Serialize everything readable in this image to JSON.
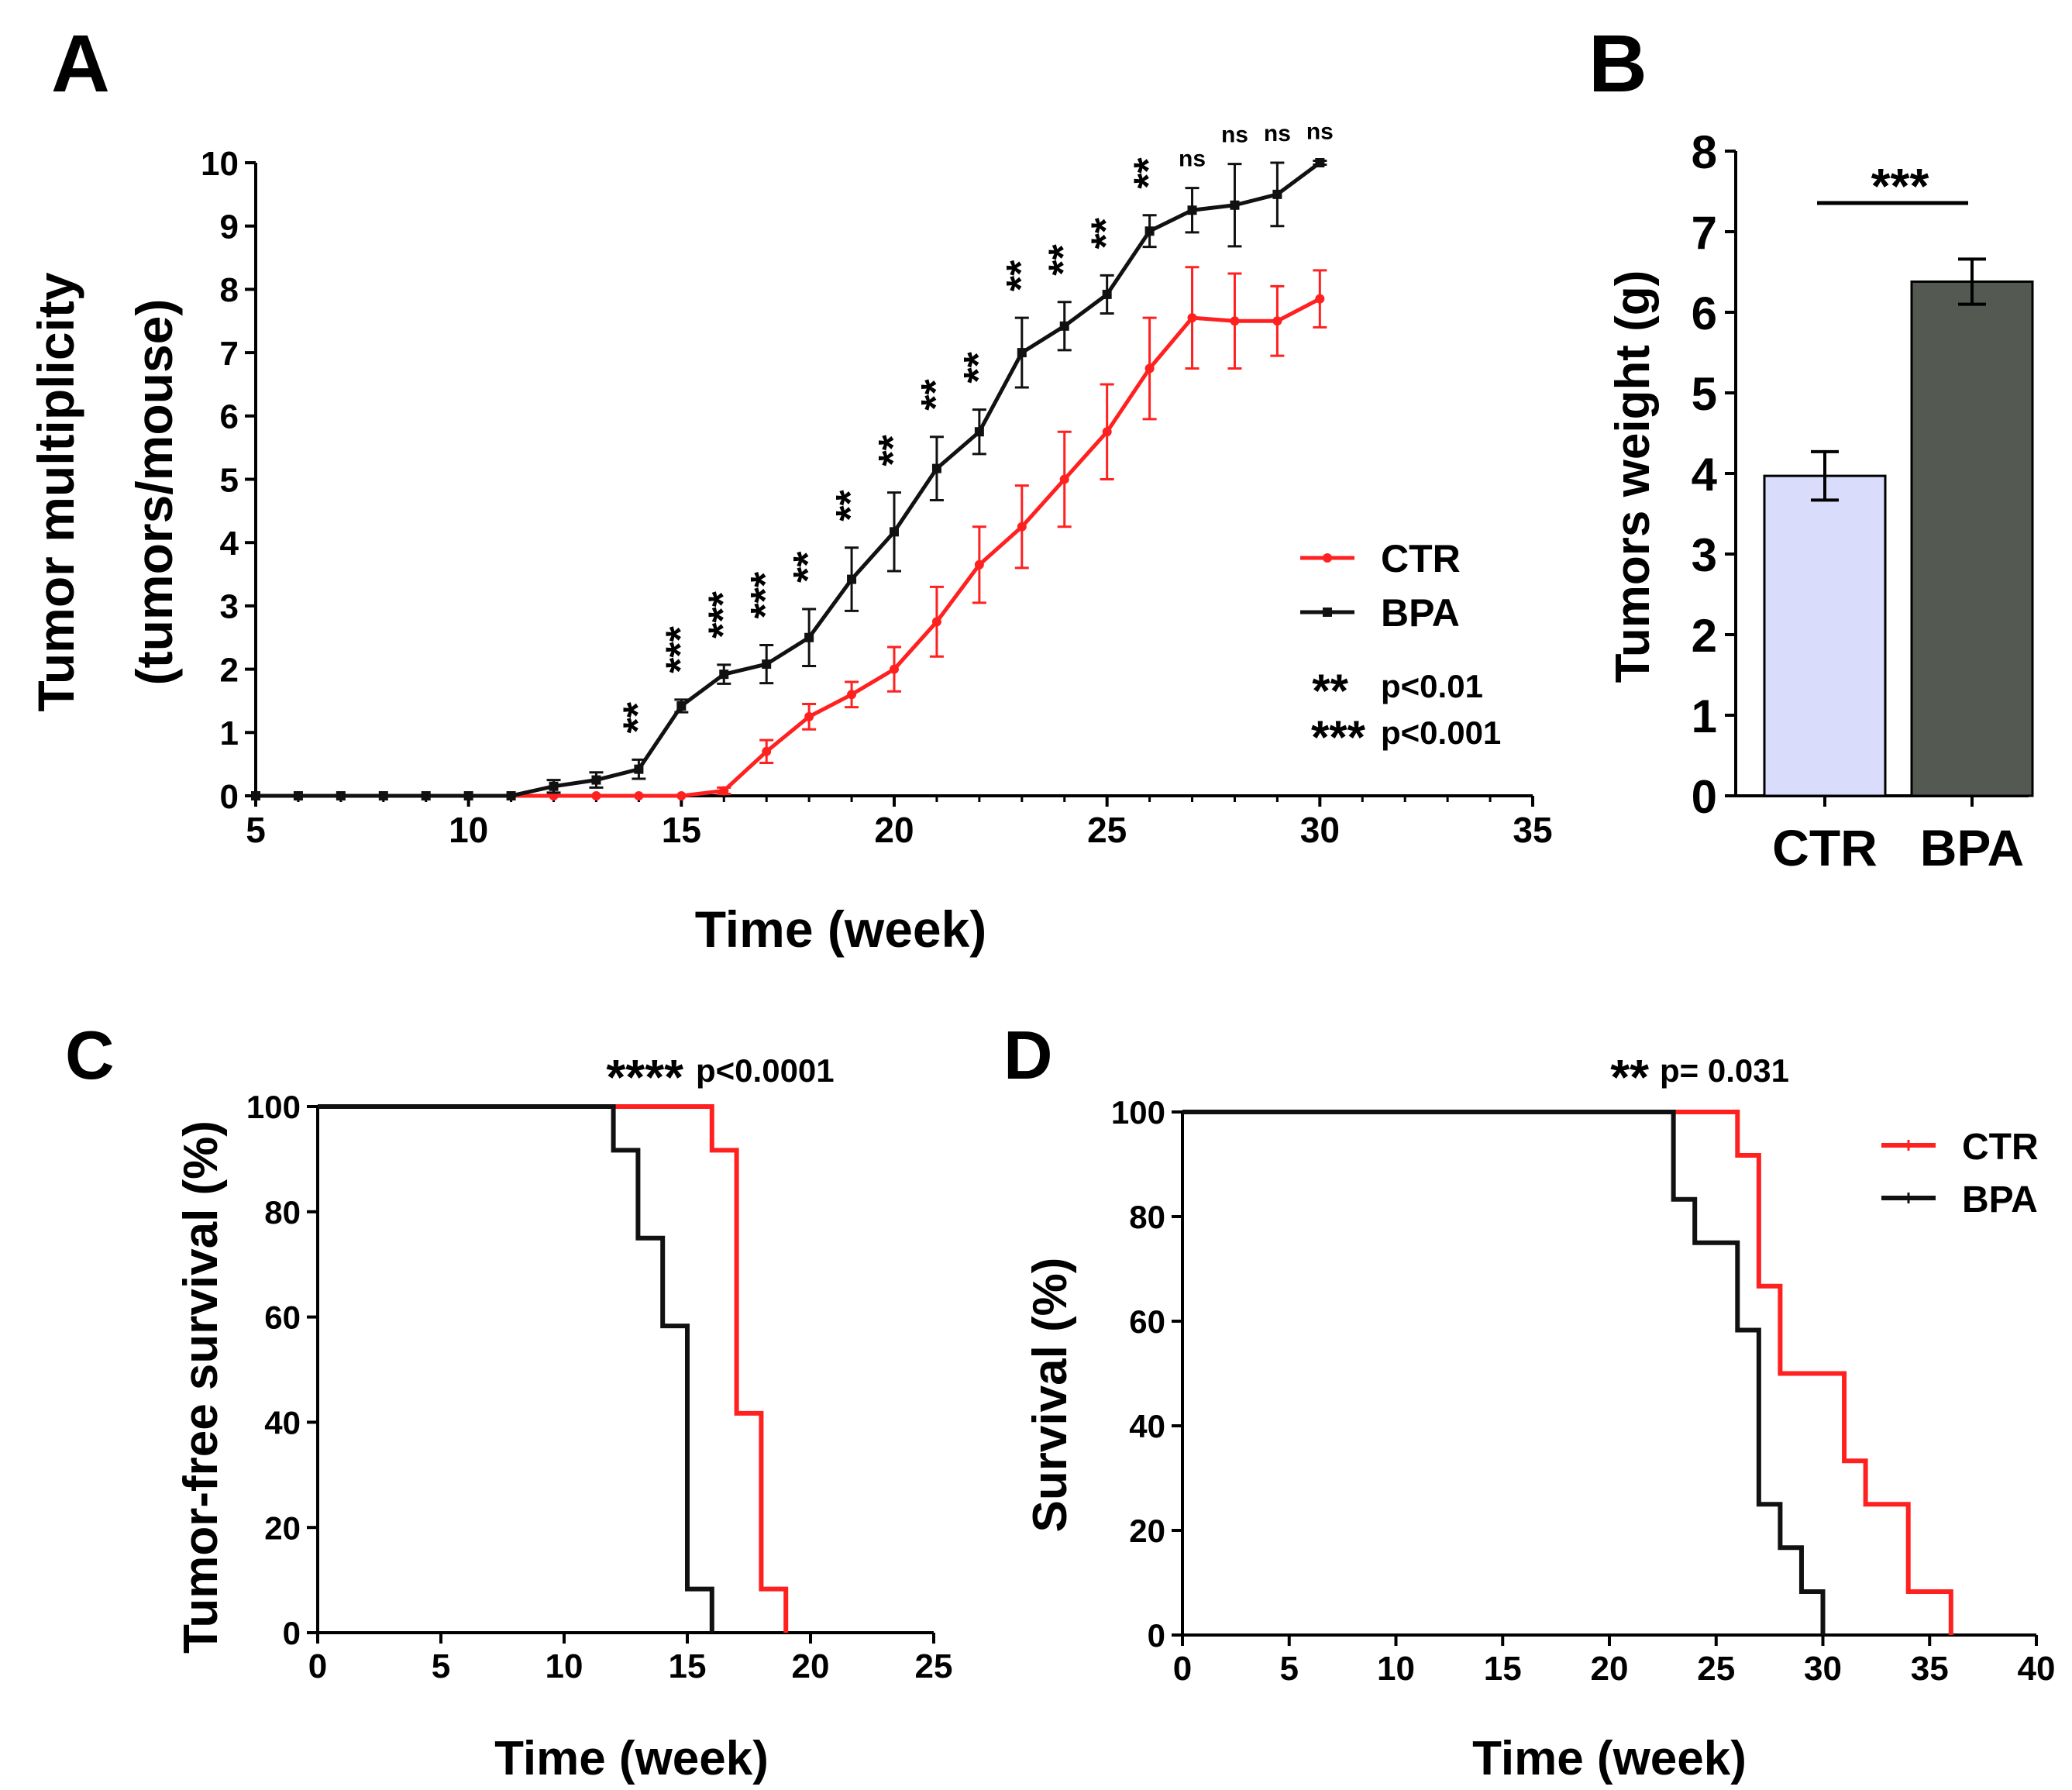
{
  "colors": {
    "ctr": "#ff2020",
    "bpa": "#111111",
    "bar_ctr": "#d9dcfb",
    "bar_bpa": "#545a52"
  },
  "chart_data": [
    {
      "panel": "A",
      "type": "line",
      "xlabel": "Time (week)",
      "ylabel_line1": "Tumor multiplicity",
      "ylabel_line2": "(tumors/mouse)",
      "xlim": [
        5,
        35
      ],
      "ylim": [
        0,
        10
      ],
      "x_ticks": [
        5,
        10,
        15,
        20,
        25,
        30,
        35
      ],
      "y_ticks": [
        0,
        1,
        2,
        3,
        4,
        5,
        6,
        7,
        8,
        9,
        10
      ],
      "series": [
        {
          "name": "CTR",
          "x": [
            5,
            6,
            7,
            8,
            9,
            10,
            11,
            12,
            13,
            14,
            15,
            16,
            17,
            18,
            19,
            20,
            21,
            22,
            23,
            24,
            25,
            26,
            27,
            28,
            29,
            30
          ],
          "values": [
            0,
            0,
            0,
            0,
            0,
            0,
            0,
            0,
            0,
            0,
            0,
            0.08,
            0.7,
            1.25,
            1.6,
            2.0,
            2.75,
            3.65,
            4.25,
            5.0,
            5.75,
            6.75,
            7.55,
            7.5,
            7.5,
            7.85
          ],
          "errors": [
            0,
            0,
            0,
            0,
            0,
            0,
            0,
            0,
            0,
            0,
            0,
            0.05,
            0.18,
            0.2,
            0.2,
            0.35,
            0.55,
            0.6,
            0.65,
            0.75,
            0.75,
            0.8,
            0.8,
            0.75,
            0.55,
            0.45
          ]
        },
        {
          "name": "BPA",
          "x": [
            5,
            6,
            7,
            8,
            9,
            10,
            11,
            12,
            13,
            14,
            15,
            16,
            17,
            18,
            19,
            20,
            21,
            22,
            23,
            24,
            25,
            26,
            27,
            28,
            29,
            30
          ],
          "values": [
            0,
            0,
            0,
            0,
            0,
            0,
            0,
            0.15,
            0.25,
            0.42,
            1.42,
            1.92,
            2.08,
            2.5,
            3.42,
            4.17,
            5.17,
            5.75,
            7.0,
            7.42,
            7.92,
            8.92,
            9.25,
            9.33,
            9.5,
            10.0
          ],
          "errors": [
            0,
            0,
            0,
            0,
            0,
            0,
            0,
            0.1,
            0.12,
            0.15,
            0.1,
            0.15,
            0.3,
            0.45,
            0.5,
            0.62,
            0.5,
            0.35,
            0.55,
            0.38,
            0.3,
            0.25,
            0.35,
            0.65,
            0.5,
            0.03
          ]
        }
      ],
      "significance": {
        "x": [
          14,
          15,
          16,
          17,
          18,
          19,
          20,
          21,
          22,
          23,
          24,
          25,
          26,
          27,
          28,
          29,
          30
        ],
        "labels": [
          "**",
          "***",
          "***",
          "***",
          "**",
          "**",
          "**",
          "**",
          "**",
          "**",
          "**",
          "**",
          "**",
          "ns",
          "ns",
          "ns",
          "ns"
        ]
      },
      "legend": [
        "CTR",
        "BPA"
      ],
      "legend_position": "right",
      "p_legend": [
        {
          "stars": "**",
          "text": "p<0.01"
        },
        {
          "stars": "***",
          "text": "p<0.001"
        }
      ]
    },
    {
      "panel": "B",
      "type": "bar",
      "ylabel": "Tumors weight (g)",
      "categories": [
        "CTR",
        "BPA"
      ],
      "values": [
        3.97,
        6.38
      ],
      "errors": [
        0.3,
        0.28
      ],
      "ylim": [
        0,
        8
      ],
      "y_ticks": [
        0,
        1,
        2,
        3,
        4,
        5,
        6,
        7,
        8
      ],
      "significance": "***"
    },
    {
      "panel": "C",
      "type": "line",
      "subtype": "kaplan-meier",
      "xlabel": "Time (week)",
      "ylabel": "Tumor-free survival (%)",
      "xlim": [
        0,
        25
      ],
      "ylim": [
        0,
        100
      ],
      "x_ticks": [
        0,
        5,
        10,
        15,
        20,
        25
      ],
      "y_ticks": [
        0,
        20,
        40,
        60,
        80,
        100
      ],
      "series": [
        {
          "name": "CTR",
          "x": [
            0,
            16,
            16,
            17,
            17,
            18,
            18,
            19,
            19
          ],
          "values": [
            100,
            100,
            91.7,
            91.7,
            41.7,
            41.7,
            8.3,
            8.3,
            0
          ]
        },
        {
          "name": "BPA",
          "x": [
            0,
            12,
            12,
            13,
            13,
            14,
            14,
            15,
            15,
            16,
            16
          ],
          "values": [
            100,
            100,
            91.7,
            91.7,
            75,
            75,
            58.3,
            58.3,
            8.3,
            8.3,
            0
          ]
        }
      ],
      "annotation": {
        "stars": "****",
        "text": "p<0.0001"
      }
    },
    {
      "panel": "D",
      "type": "line",
      "subtype": "kaplan-meier",
      "xlabel": "Time (week)",
      "ylabel": "Survival (%)",
      "xlim": [
        0,
        40
      ],
      "ylim": [
        0,
        100
      ],
      "x_ticks": [
        0,
        5,
        10,
        15,
        20,
        25,
        30,
        35,
        40
      ],
      "y_ticks": [
        0,
        20,
        40,
        60,
        80,
        100
      ],
      "series": [
        {
          "name": "CTR",
          "x": [
            0,
            26,
            26,
            27,
            27,
            28,
            28,
            31,
            31,
            32,
            32,
            34,
            34,
            36,
            36
          ],
          "values": [
            100,
            100,
            91.7,
            91.7,
            66.7,
            66.7,
            50,
            50,
            33.3,
            33.3,
            25,
            25,
            8.3,
            8.3,
            0
          ]
        },
        {
          "name": "BPA",
          "x": [
            0,
            23,
            23,
            24,
            24,
            26,
            26,
            27,
            27,
            28,
            28,
            29,
            29,
            30,
            30
          ],
          "values": [
            100,
            100,
            83.3,
            83.3,
            75,
            75,
            58.3,
            58.3,
            25,
            25,
            16.7,
            16.7,
            8.3,
            8.3,
            0
          ]
        }
      ],
      "legend": [
        "CTR",
        "BPA"
      ],
      "legend_position": "top-right",
      "annotation": {
        "stars": "**",
        "text": "p= 0.031"
      }
    }
  ]
}
